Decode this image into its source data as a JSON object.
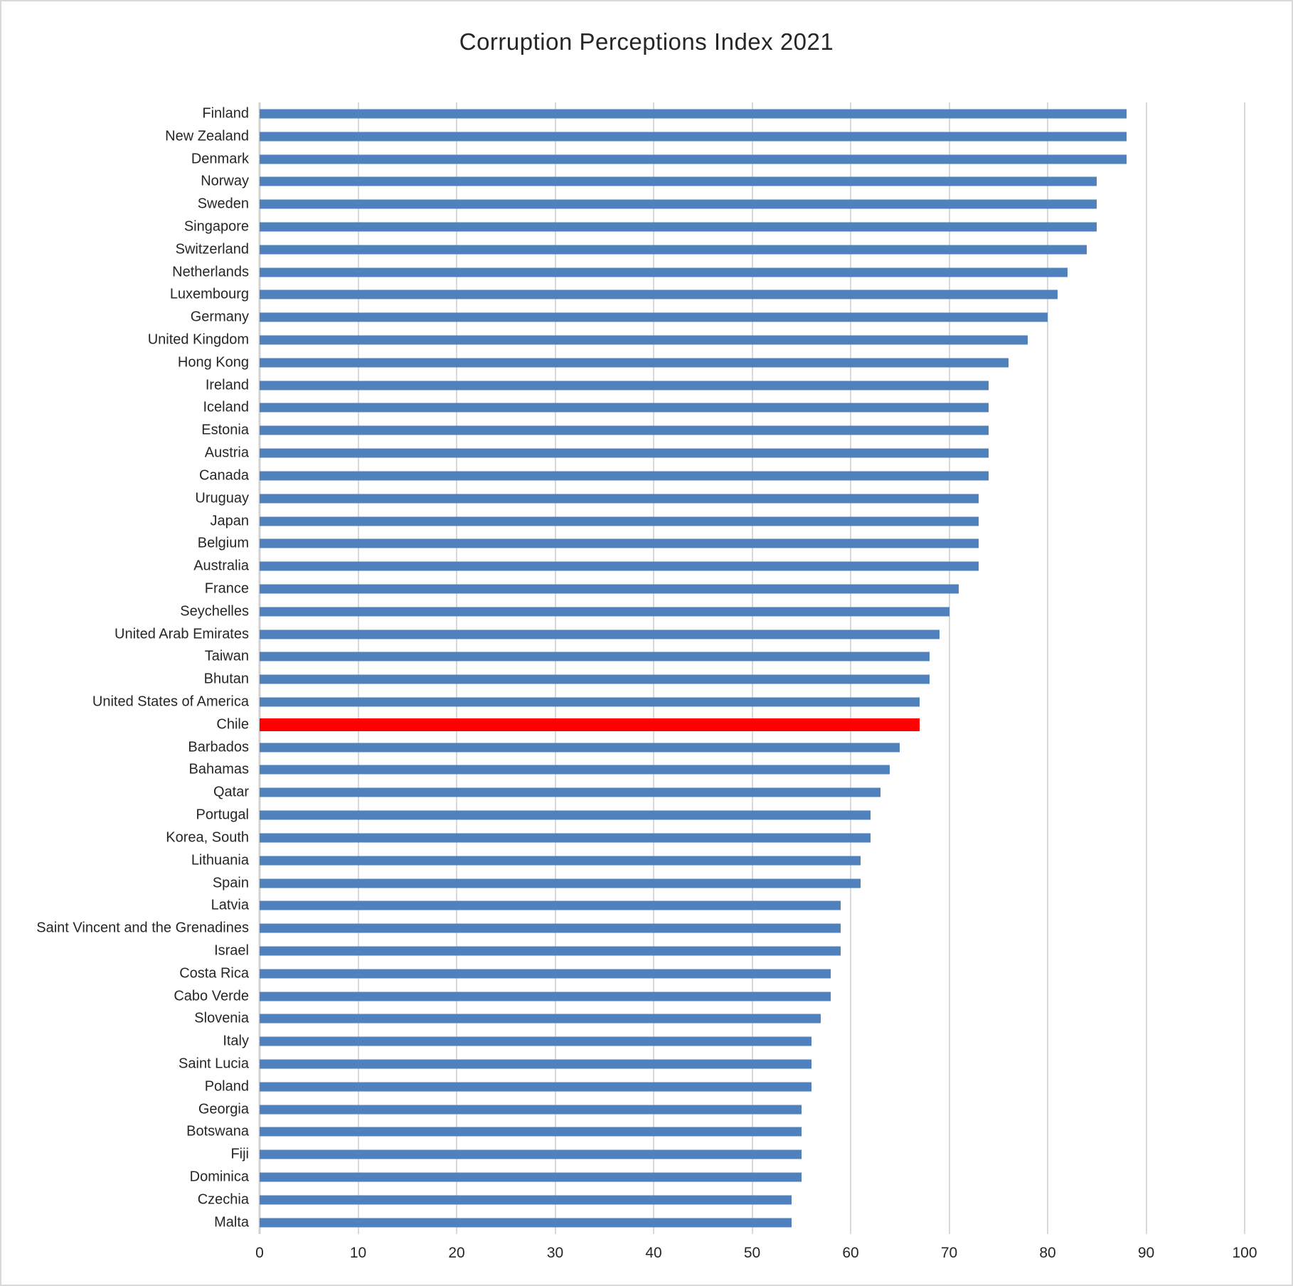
{
  "title": "Corruption Perceptions Index 2021",
  "colors": {
    "bar": "#4F81BD",
    "highlight": "#FF0000",
    "gridline": "#D9D9D9",
    "text": "#262626",
    "background": "#FFFFFF",
    "border": "#D9D9D9"
  },
  "chart_data": {
    "type": "bar",
    "orientation": "horizontal",
    "title": "Corruption Perceptions Index 2021",
    "xlabel": "",
    "ylabel": "",
    "xlim": [
      0,
      100
    ],
    "x_ticks": [
      0,
      10,
      20,
      30,
      40,
      50,
      60,
      70,
      80,
      90,
      100
    ],
    "grid": true,
    "legend": false,
    "highlighted_category": "Chile",
    "categories": [
      "Finland",
      "New Zealand",
      "Denmark",
      "Norway",
      "Sweden",
      "Singapore",
      "Switzerland",
      "Netherlands",
      "Luxembourg",
      "Germany",
      "United Kingdom",
      "Hong Kong",
      "Ireland",
      "Iceland",
      "Estonia",
      "Austria",
      "Canada",
      "Uruguay",
      "Japan",
      "Belgium",
      "Australia",
      "France",
      "Seychelles",
      "United Arab Emirates",
      "Taiwan",
      "Bhutan",
      "United States of America",
      "Chile",
      "Barbados",
      "Bahamas",
      "Qatar",
      "Portugal",
      "Korea, South",
      "Lithuania",
      "Spain",
      "Latvia",
      "Saint Vincent and the Grenadines",
      "Israel",
      "Costa Rica",
      "Cabo Verde",
      "Slovenia",
      "Italy",
      "Saint Lucia",
      "Poland",
      "Georgia",
      "Botswana",
      "Fiji",
      "Dominica",
      "Czechia",
      "Malta"
    ],
    "values": [
      88,
      88,
      88,
      85,
      85,
      85,
      84,
      82,
      81,
      80,
      78,
      76,
      74,
      74,
      74,
      74,
      74,
      73,
      73,
      73,
      73,
      71,
      70,
      69,
      68,
      68,
      67,
      67,
      65,
      64,
      63,
      62,
      62,
      61,
      61,
      59,
      59,
      59,
      58,
      58,
      57,
      56,
      56,
      56,
      55,
      55,
      55,
      55,
      54,
      54
    ]
  }
}
